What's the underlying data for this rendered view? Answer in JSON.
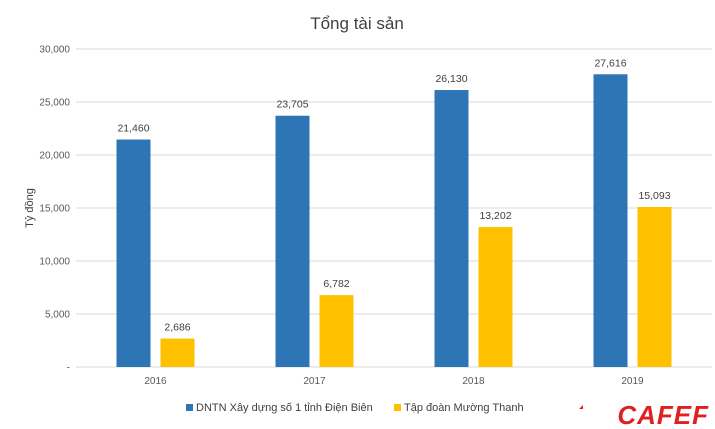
{
  "chart_data": {
    "type": "bar",
    "title": "Tổng tài sản",
    "ylabel": "Tỷ đồng",
    "xlabel": "",
    "categories": [
      "2016",
      "2017",
      "2018",
      "2019"
    ],
    "series": [
      {
        "name": "DNTN Xây dựng số 1 tỉnh Điện Biên",
        "color": "#2e75b6",
        "values": [
          21460,
          23705,
          26130,
          27616
        ],
        "labels": [
          "21,460",
          "23,705",
          "26,130",
          "27,616"
        ]
      },
      {
        "name": "Tập đoàn Mường Thanh",
        "color": "#ffc000",
        "values": [
          2686,
          6782,
          13202,
          15093
        ],
        "labels": [
          "2,686",
          "6,782",
          "13,202",
          "15,093"
        ]
      }
    ],
    "ylim": [
      0,
      30000
    ],
    "yticks": [
      0,
      5000,
      10000,
      15000,
      20000,
      25000,
      30000
    ],
    "ytick_labels": [
      "-",
      "5,000",
      "10,000",
      "15,000",
      "20,000",
      "25,000",
      "30,000"
    ],
    "grid": true,
    "legend_position": "bottom"
  },
  "watermark": {
    "text": "CAFEF",
    "color": "#e02020"
  }
}
